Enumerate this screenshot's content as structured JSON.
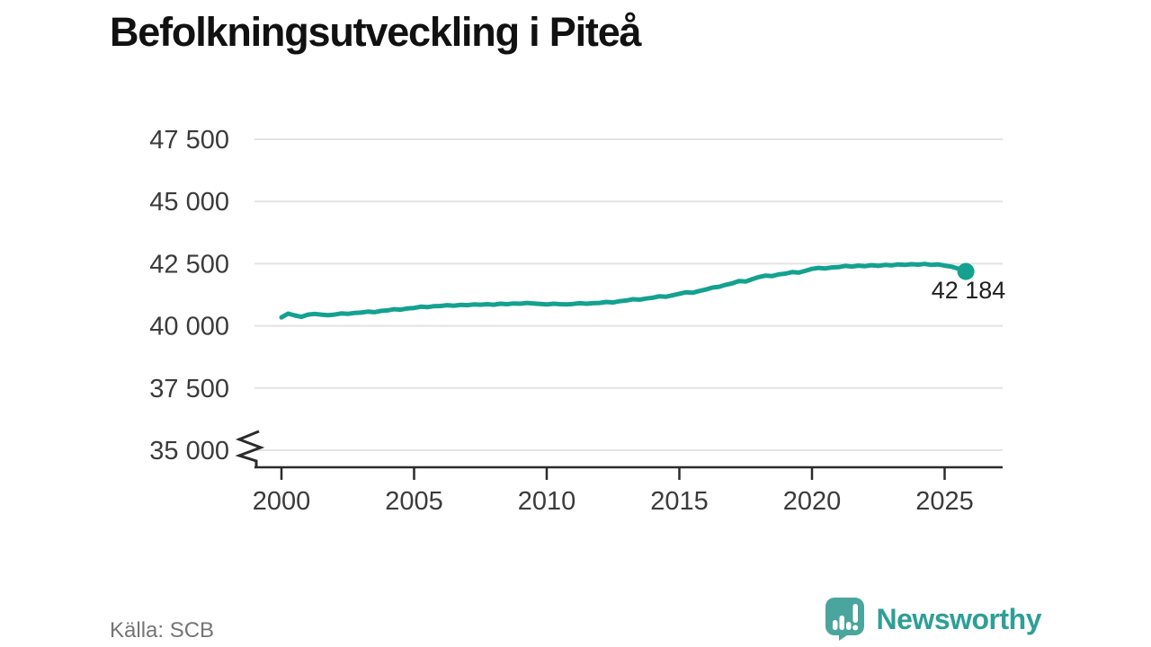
{
  "title": "Befolkningsutveckling i Piteå",
  "source": "Källa: SCB",
  "branding": {
    "name": "Newsworthy",
    "icon": "speech-bubble-bar-chart-exclamation-icon",
    "brand_color": "#2e9f97",
    "icon_color": "#4aa59e"
  },
  "colors": {
    "line": "#14a190",
    "grid": "#e3e3e3",
    "axis": "#2b2b2b",
    "tick_text": "#3b3b3b",
    "title_text": "#111111",
    "source_text": "#757575"
  },
  "chart_data": {
    "type": "line",
    "title": "Befolkningsutveckling i Piteå",
    "xlabel": "",
    "ylabel": "",
    "grid": "horizontal",
    "legend": "none",
    "axis_break_at_y_min": true,
    "ylim": [
      35000,
      47500
    ],
    "xlim": [
      1999,
      2027.2
    ],
    "y_ticks": [
      {
        "value": 35000,
        "label": "35 000"
      },
      {
        "value": 37500,
        "label": "37 500"
      },
      {
        "value": 40000,
        "label": "40 000"
      },
      {
        "value": 42500,
        "label": "42 500"
      },
      {
        "value": 45000,
        "label": "45 000"
      },
      {
        "value": 47500,
        "label": "47 500"
      }
    ],
    "x_ticks": [
      {
        "value": 2000,
        "label": "2000"
      },
      {
        "value": 2005,
        "label": "2005"
      },
      {
        "value": 2010,
        "label": "2010"
      },
      {
        "value": 2015,
        "label": "2015"
      },
      {
        "value": 2020,
        "label": "2020"
      },
      {
        "value": 2025,
        "label": "2025"
      }
    ],
    "end_label": "42 184",
    "end_value": 42184,
    "series": [
      {
        "name": "Befolkning Piteå",
        "points": [
          [
            2000.0,
            40340
          ],
          [
            2000.25,
            40490
          ],
          [
            2000.5,
            40420
          ],
          [
            2000.75,
            40360
          ],
          [
            2001.0,
            40450
          ],
          [
            2001.25,
            40480
          ],
          [
            2001.5,
            40450
          ],
          [
            2001.75,
            40430
          ],
          [
            2002.0,
            40450
          ],
          [
            2002.25,
            40500
          ],
          [
            2002.5,
            40480
          ],
          [
            2002.75,
            40520
          ],
          [
            2003.0,
            40530
          ],
          [
            2003.25,
            40570
          ],
          [
            2003.5,
            40550
          ],
          [
            2003.75,
            40600
          ],
          [
            2004.0,
            40620
          ],
          [
            2004.25,
            40670
          ],
          [
            2004.5,
            40650
          ],
          [
            2004.75,
            40700
          ],
          [
            2005.0,
            40720
          ],
          [
            2005.25,
            40770
          ],
          [
            2005.5,
            40750
          ],
          [
            2005.75,
            40790
          ],
          [
            2006.0,
            40800
          ],
          [
            2006.25,
            40830
          ],
          [
            2006.5,
            40810
          ],
          [
            2006.75,
            40840
          ],
          [
            2007.0,
            40830
          ],
          [
            2007.25,
            40860
          ],
          [
            2007.5,
            40850
          ],
          [
            2007.75,
            40870
          ],
          [
            2008.0,
            40850
          ],
          [
            2008.25,
            40890
          ],
          [
            2008.5,
            40870
          ],
          [
            2008.75,
            40900
          ],
          [
            2009.0,
            40890
          ],
          [
            2009.25,
            40920
          ],
          [
            2009.5,
            40900
          ],
          [
            2009.75,
            40880
          ],
          [
            2010.0,
            40860
          ],
          [
            2010.25,
            40890
          ],
          [
            2010.5,
            40870
          ],
          [
            2010.75,
            40860
          ],
          [
            2011.0,
            40880
          ],
          [
            2011.25,
            40910
          ],
          [
            2011.5,
            40890
          ],
          [
            2011.75,
            40910
          ],
          [
            2012.0,
            40920
          ],
          [
            2012.25,
            40960
          ],
          [
            2012.5,
            40940
          ],
          [
            2012.75,
            40990
          ],
          [
            2013.0,
            41020
          ],
          [
            2013.25,
            41070
          ],
          [
            2013.5,
            41050
          ],
          [
            2013.75,
            41100
          ],
          [
            2014.0,
            41130
          ],
          [
            2014.25,
            41190
          ],
          [
            2014.5,
            41170
          ],
          [
            2014.75,
            41230
          ],
          [
            2015.0,
            41290
          ],
          [
            2015.25,
            41350
          ],
          [
            2015.5,
            41330
          ],
          [
            2015.75,
            41400
          ],
          [
            2016.0,
            41460
          ],
          [
            2016.25,
            41540
          ],
          [
            2016.5,
            41570
          ],
          [
            2016.75,
            41650
          ],
          [
            2017.0,
            41710
          ],
          [
            2017.25,
            41800
          ],
          [
            2017.5,
            41780
          ],
          [
            2017.75,
            41880
          ],
          [
            2018.0,
            41960
          ],
          [
            2018.25,
            42020
          ],
          [
            2018.5,
            42000
          ],
          [
            2018.75,
            42070
          ],
          [
            2019.0,
            42100
          ],
          [
            2019.25,
            42160
          ],
          [
            2019.5,
            42140
          ],
          [
            2019.75,
            42210
          ],
          [
            2020.0,
            42290
          ],
          [
            2020.25,
            42330
          ],
          [
            2020.5,
            42310
          ],
          [
            2020.75,
            42350
          ],
          [
            2021.0,
            42360
          ],
          [
            2021.25,
            42410
          ],
          [
            2021.5,
            42380
          ],
          [
            2021.75,
            42420
          ],
          [
            2022.0,
            42400
          ],
          [
            2022.25,
            42440
          ],
          [
            2022.5,
            42410
          ],
          [
            2022.75,
            42450
          ],
          [
            2023.0,
            42430
          ],
          [
            2023.25,
            42470
          ],
          [
            2023.5,
            42450
          ],
          [
            2023.75,
            42480
          ],
          [
            2024.0,
            42460
          ],
          [
            2024.25,
            42490
          ],
          [
            2024.5,
            42450
          ],
          [
            2024.75,
            42470
          ],
          [
            2025.0,
            42420
          ],
          [
            2025.25,
            42380
          ],
          [
            2025.5,
            42300
          ],
          [
            2025.8,
            42184
          ]
        ]
      }
    ]
  }
}
